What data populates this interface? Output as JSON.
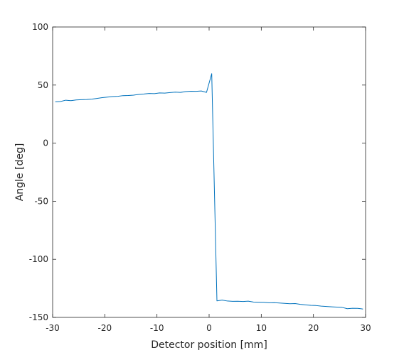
{
  "chart_data": {
    "type": "line",
    "title": "",
    "xlabel": "Detector position [mm]",
    "ylabel": "Angle [deg]",
    "xlim": [
      -30,
      30
    ],
    "ylim": [
      -150,
      100
    ],
    "grid": false,
    "box": true,
    "x_ticks": [
      {
        "value": -30,
        "label": "-30"
      },
      {
        "value": -20,
        "label": "-20"
      },
      {
        "value": -10,
        "label": "-10"
      },
      {
        "value": 0,
        "label": "0"
      },
      {
        "value": 10,
        "label": "10"
      },
      {
        "value": 20,
        "label": "20"
      },
      {
        "value": 30,
        "label": "30"
      }
    ],
    "y_ticks": [
      {
        "value": -150,
        "label": "-150"
      },
      {
        "value": -100,
        "label": "-100"
      },
      {
        "value": -50,
        "label": "-50"
      },
      {
        "value": 0,
        "label": "0"
      },
      {
        "value": 50,
        "label": "50"
      },
      {
        "value": 100,
        "label": "100"
      }
    ],
    "series": [
      {
        "color": "#0072bd",
        "x": [
          -29.5,
          -28.5,
          -27.5,
          -26.5,
          -25.5,
          -24.5,
          -23.5,
          -22.5,
          -21.5,
          -20.5,
          -19.5,
          -18.5,
          -17.5,
          -16.5,
          -15.5,
          -14.5,
          -13.5,
          -12.5,
          -11.5,
          -10.5,
          -9.5,
          -8.5,
          -7.5,
          -6.5,
          -5.5,
          -4.5,
          -3.5,
          -2.5,
          -1.5,
          -0.5,
          0.5,
          1.5,
          2.5,
          3.5,
          4.5,
          5.5,
          6.5,
          7.5,
          8.5,
          9.5,
          10.5,
          11.5,
          12.5,
          13.5,
          14.5,
          15.5,
          16.5,
          17.5,
          18.5,
          19.5,
          20.5,
          21.5,
          22.5,
          23.5,
          24.5,
          25.5,
          26.5,
          27.5,
          28.5,
          29.5
        ],
        "y": [
          35.5,
          35.8,
          37.0,
          36.6,
          37.2,
          37.4,
          37.6,
          37.9,
          38.5,
          39.2,
          39.6,
          40.1,
          40.3,
          40.9,
          41.0,
          41.3,
          41.9,
          42.3,
          42.8,
          42.6,
          43.2,
          43.1,
          43.5,
          43.9,
          43.7,
          44.4,
          44.7,
          44.6,
          44.9,
          43.7,
          59.8,
          -135.8,
          -135.1,
          -135.9,
          -136.2,
          -136.1,
          -136.3,
          -136.0,
          -136.8,
          -136.9,
          -137.0,
          -137.4,
          -137.3,
          -137.6,
          -137.9,
          -138.2,
          -138.1,
          -138.8,
          -139.2,
          -139.6,
          -139.8,
          -140.3,
          -140.6,
          -140.9,
          -141.1,
          -141.4,
          -142.5,
          -142.1,
          -142.2,
          -142.8
        ]
      }
    ]
  }
}
